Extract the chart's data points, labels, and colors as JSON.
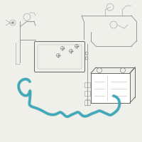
{
  "bg_color": "#f0f0eb",
  "gray": "#999999",
  "dark_gray": "#666666",
  "mid_gray": "#bbbbbb",
  "teal": "#3aabbc",
  "teal_dark": "#1a7a8a",
  "white": "#ffffff"
}
